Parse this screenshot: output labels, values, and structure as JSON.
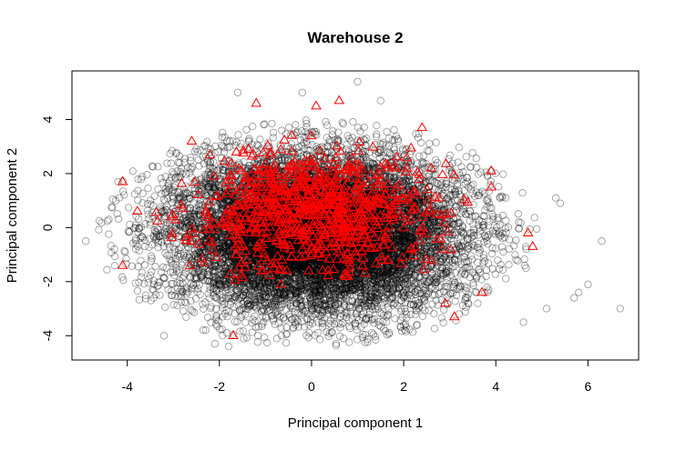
{
  "chart_data": {
    "type": "scatter",
    "title": "Warehouse 2",
    "xlabel": "Principal component 1",
    "ylabel": "Principal component 2",
    "xlim": [
      -5.2,
      7.1
    ],
    "ylim": [
      -4.9,
      5.8
    ],
    "xticks": [
      -4,
      -2,
      0,
      2,
      4,
      6
    ],
    "yticks": [
      -4,
      -2,
      0,
      2,
      4
    ],
    "grid": false,
    "legend": "none",
    "series": [
      {
        "marker": "open-circle",
        "color": "#000000",
        "approx_count": 12000,
        "distribution": {
          "x_mean": 0.1,
          "x_sd": 1.55,
          "y_mean": -0.2,
          "y_sd": 1.45,
          "x_range": [
            -4.9,
            6.7
          ],
          "y_range": [
            -4.4,
            5.4
          ]
        },
        "outlier_points": [
          {
            "x": -4.9,
            "y": -0.5
          },
          {
            "x": -4.4,
            "y": 0.3
          },
          {
            "x": -4.2,
            "y": 1.7
          },
          {
            "x": -3.2,
            "y": -4.0
          },
          {
            "x": -2.1,
            "y": -4.3
          },
          {
            "x": -1.8,
            "y": -4.4
          },
          {
            "x": -1.6,
            "y": 5.0
          },
          {
            "x": -0.2,
            "y": 5.0
          },
          {
            "x": 1.0,
            "y": 5.4
          },
          {
            "x": 1.5,
            "y": 4.7
          },
          {
            "x": 4.6,
            "y": -3.5
          },
          {
            "x": 5.1,
            "y": -3.0
          },
          {
            "x": 5.7,
            "y": -2.6
          },
          {
            "x": 5.8,
            "y": -2.4
          },
          {
            "x": 6.0,
            "y": -2.1
          },
          {
            "x": 6.7,
            "y": -3.0
          },
          {
            "x": 5.3,
            "y": 1.1
          },
          {
            "x": 5.4,
            "y": 0.9
          },
          {
            "x": 6.3,
            "y": -0.5
          },
          {
            "x": 3.9,
            "y": 2.1
          }
        ]
      },
      {
        "marker": "open-triangle",
        "color": "#ff0000",
        "approx_count": 900,
        "distribution": {
          "x_mean": 0.0,
          "x_sd": 1.25,
          "y_mean": 0.6,
          "y_sd": 1.05,
          "x_range": [
            -4.2,
            4.9
          ],
          "y_range": [
            -4.0,
            4.7
          ]
        },
        "outlier_points": [
          {
            "x": -4.1,
            "y": 1.7
          },
          {
            "x": -4.1,
            "y": -1.4
          },
          {
            "x": -1.2,
            "y": 4.6
          },
          {
            "x": 0.6,
            "y": 4.7
          },
          {
            "x": 0.1,
            "y": 4.5
          },
          {
            "x": -1.7,
            "y": -4.0
          },
          {
            "x": -2.6,
            "y": 3.2
          },
          {
            "x": 3.1,
            "y": -3.3
          },
          {
            "x": 2.9,
            "y": -2.8
          },
          {
            "x": 3.9,
            "y": 2.1
          },
          {
            "x": 4.7,
            "y": -0.2
          },
          {
            "x": 4.8,
            "y": -0.7
          },
          {
            "x": 2.4,
            "y": 3.7
          },
          {
            "x": 3.7,
            "y": -2.4
          },
          {
            "x": 3.9,
            "y": 1.5
          }
        ]
      }
    ]
  }
}
